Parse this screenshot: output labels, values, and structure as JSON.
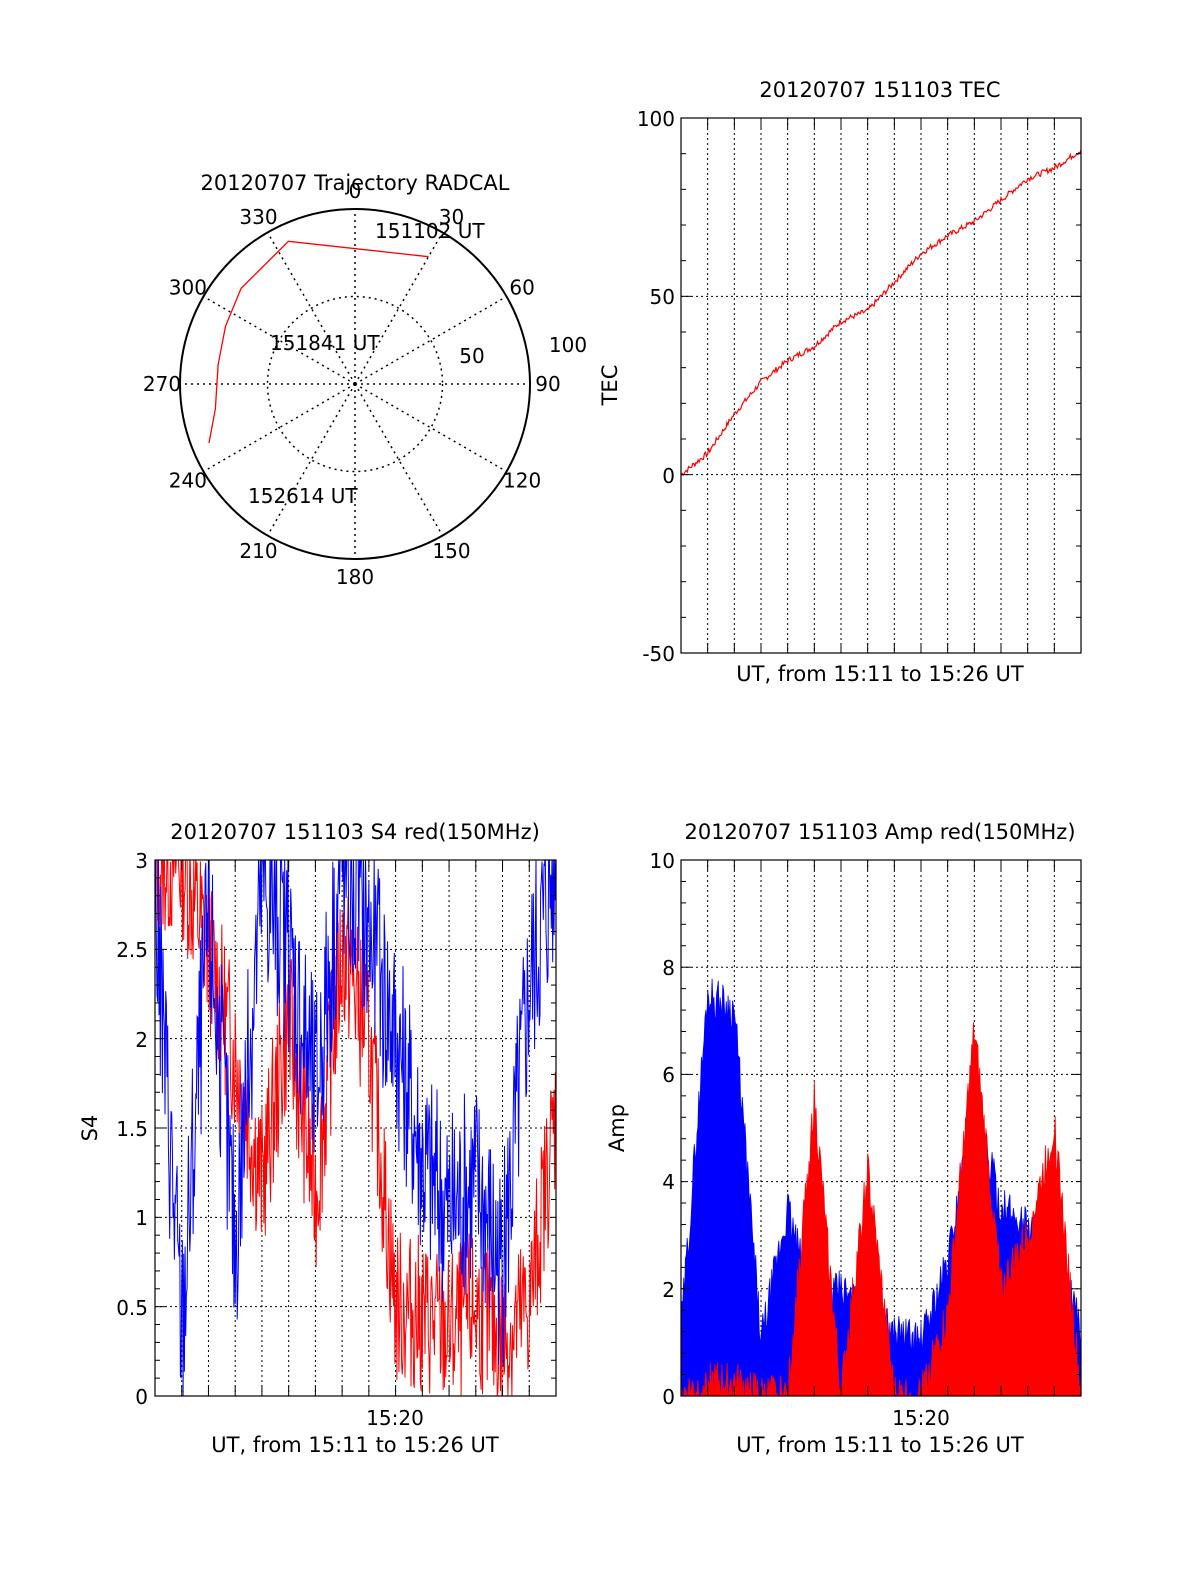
{
  "colors": {
    "red": "#ff0000",
    "blue": "#0000ff",
    "axis": "#000000",
    "grid": "#000000",
    "background": "#ffffff"
  },
  "chart_data": [
    {
      "id": "polar",
      "type": "scatter",
      "projection": "polar",
      "title": "20120707 Trajectory RADCAL",
      "rlim": [
        0,
        100
      ],
      "radial_ticks": [
        "50",
        "100"
      ],
      "angle_ticks": [
        "0",
        "30",
        "60",
        "90",
        "120",
        "150",
        "180",
        "210",
        "240",
        "270",
        "300",
        "330"
      ],
      "grid": true,
      "series": [
        {
          "color": "#ff0000",
          "points": [
            {
              "az": 30,
              "zd": 84
            },
            {
              "az": 335,
              "zd": 90
            },
            {
              "az": 310,
              "zd": 85
            },
            {
              "az": 294,
              "zd": 81
            },
            {
              "az": 278,
              "zd": 79
            },
            {
              "az": 260,
              "zd": 81
            },
            {
              "az": 248,
              "zd": 90
            }
          ]
        }
      ],
      "annotations": [
        {
          "text": "151102 UT",
          "az": 24,
          "zd": 92
        },
        {
          "text": "151841 UT",
          "az": 302,
          "zd": 27
        },
        {
          "text": "152614 UT",
          "az": 225,
          "zd": 60
        }
      ]
    },
    {
      "id": "tec",
      "type": "line",
      "title": "20120707 151103 TEC",
      "xlabel": "UT, from 15:11 to 15:26 UT",
      "ylabel": "TEC",
      "xlim": [
        "15:11",
        "15:26"
      ],
      "ylim": [
        -50,
        100
      ],
      "yticks": [
        "-50",
        "0",
        "50",
        "100"
      ],
      "xticks": [],
      "grid": true,
      "series": [
        {
          "color": "#ff0000",
          "x": [
            "15:11",
            "15:12",
            "15:13",
            "15:14",
            "15:15",
            "15:16",
            "15:17",
            "15:18",
            "15:19",
            "15:20",
            "15:21",
            "15:22",
            "15:23",
            "15:24",
            "15:25",
            "15:26"
          ],
          "values": [
            0,
            6,
            17,
            26,
            32,
            36,
            43,
            46,
            54,
            62,
            67,
            71,
            77,
            83,
            86,
            91
          ]
        }
      ]
    },
    {
      "id": "s4",
      "type": "line",
      "title": "20120707 151103 S4 red(150MHz)",
      "xlabel": "UT, from 15:11 to 15:26 UT",
      "ylabel": "S4",
      "xlim": [
        "15:11",
        "15:26"
      ],
      "ylim": [
        0,
        3
      ],
      "yticks": [
        "0",
        "0.5",
        "1",
        "1.5",
        "2",
        "2.5",
        "3"
      ],
      "xticks": [
        "15:20"
      ],
      "grid": true,
      "series": [
        {
          "color": "#0000ff",
          "x": [
            "15:11",
            "15:12",
            "15:13",
            "15:14",
            "15:15",
            "15:16",
            "15:17",
            "15:18",
            "15:19",
            "15:20",
            "15:21",
            "15:22",
            "15:23",
            "15:24",
            "15:25",
            "15:26"
          ],
          "values": [
            2.8,
            0.37,
            2.7,
            0.85,
            2.9,
            2.5,
            1.7,
            3.0,
            2.6,
            2.0,
            1.3,
            1.0,
            1.2,
            0.7,
            2.3,
            3.0
          ]
        },
        {
          "color": "#ff0000",
          "x": [
            "15:11",
            "15:12",
            "15:13",
            "15:14",
            "15:15",
            "15:16",
            "15:17",
            "15:18",
            "15:19",
            "15:20",
            "15:21",
            "15:22",
            "15:23",
            "15:24",
            "15:25",
            "15:26"
          ],
          "values": [
            3.0,
            3.0,
            2.5,
            1.9,
            1.2,
            2.1,
            1.1,
            2.5,
            2.0,
            0.5,
            0.45,
            0.35,
            0.5,
            0.3,
            0.5,
            1.6
          ]
        }
      ]
    },
    {
      "id": "amp",
      "type": "area",
      "title": "20120707 151103 Amp red(150MHz)",
      "xlabel": "UT, from 15:11 to 15:26 UT",
      "ylabel": "Amp",
      "xlim": [
        "15:11",
        "15:26"
      ],
      "ylim": [
        0,
        10
      ],
      "yticks": [
        "0",
        "2",
        "4",
        "6",
        "8",
        "10"
      ],
      "xticks": [
        "15:20"
      ],
      "grid": true,
      "series": [
        {
          "color": "#0000ff",
          "x": [
            "15:11",
            "15:12",
            "15:13",
            "15:14",
            "15:15",
            "15:16",
            "15:17",
            "15:18",
            "15:19",
            "15:20",
            "15:21",
            "15:22",
            "15:23",
            "15:24",
            "15:25",
            "15:26"
          ],
          "values": [
            1.2,
            7.5,
            7.2,
            1.0,
            3.5,
            1.5,
            2.0,
            1.4,
            1.2,
            1.0,
            2.5,
            5.5,
            3.5,
            3.2,
            2.8,
            1.2
          ]
        },
        {
          "color": "#ff0000",
          "x": [
            "15:11",
            "15:12",
            "15:13",
            "15:14",
            "15:15",
            "15:16",
            "15:17",
            "15:18",
            "15:19",
            "15:20",
            "15:21",
            "15:22",
            "15:23",
            "15:24",
            "15:25",
            "15:26"
          ],
          "values": [
            0,
            0.25,
            0.25,
            0,
            0,
            5.5,
            0,
            4.2,
            0,
            0,
            1.5,
            6.8,
            2.0,
            3.0,
            5.0,
            0
          ]
        }
      ]
    }
  ]
}
